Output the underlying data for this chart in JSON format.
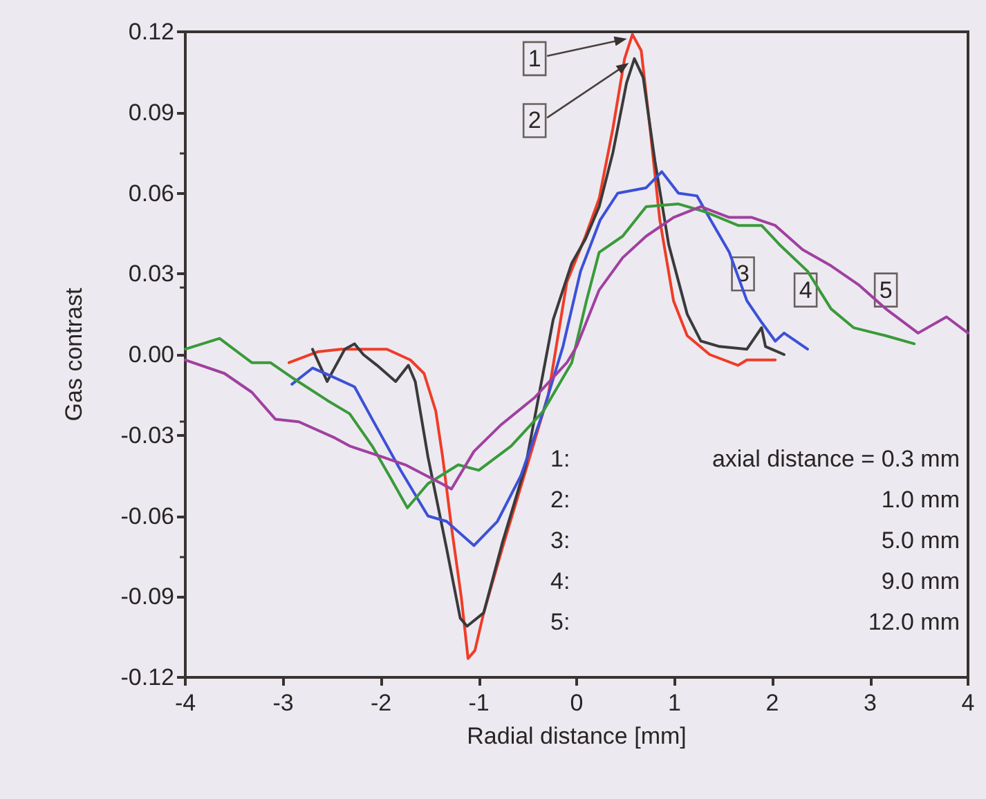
{
  "chart_data": {
    "type": "line",
    "xlabel": "Radial distance [mm]",
    "ylabel": "Gas contrast",
    "xlim": [
      -4,
      4
    ],
    "xticks": [
      -4,
      -3,
      -2,
      -1,
      0,
      1,
      2,
      3,
      4
    ],
    "ylim": [
      -0.12,
      0.12
    ],
    "yticks": [
      {
        "value": -0.12,
        "label": "-0.12"
      },
      {
        "value": -0.09,
        "label": "-0.09"
      },
      {
        "value": -0.06,
        "label": "-0.06"
      },
      {
        "value": -0.03,
        "label": "-0.03"
      },
      {
        "value": 0,
        "label": "0.00"
      },
      {
        "value": 0.03,
        "label": "0.03"
      },
      {
        "value": 0.06,
        "label": "0.06"
      },
      {
        "value": 0.09,
        "label": "0.09"
      },
      {
        "value": 0.12,
        "label": "0.12"
      }
    ],
    "grid": false,
    "marker": "none",
    "line_style": "solid",
    "series": [
      {
        "color": "#f03c28",
        "x": [
          -2.94,
          -2.65,
          -2.41,
          -1.94,
          -1.7,
          -1.56,
          -1.44,
          -1.37,
          -1.28,
          -1.18,
          -1.11,
          -1.04,
          -0.95,
          -0.76,
          -0.52,
          -0.29,
          -0.1,
          0.09,
          0.23,
          0.37,
          0.49,
          0.57,
          0.66,
          0.75,
          0.85,
          0.99,
          1.13,
          1.36,
          1.65,
          1.74,
          2.03
        ],
        "values": [
          -0.003,
          0.001,
          0.002,
          0.002,
          -0.002,
          -0.007,
          -0.021,
          -0.038,
          -0.064,
          -0.09,
          -0.113,
          -0.11,
          -0.096,
          -0.072,
          -0.043,
          -0.015,
          0.027,
          0.044,
          0.058,
          0.084,
          0.11,
          0.119,
          0.113,
          0.084,
          0.05,
          0.02,
          0.007,
          0,
          -0.004,
          -0.002,
          -0.002
        ]
      },
      {
        "color": "#3a3a3a",
        "x": [
          -2.7,
          -2.55,
          -2.37,
          -2.27,
          -2.18,
          -2.04,
          -1.85,
          -1.72,
          -1.65,
          -1.52,
          -1.33,
          -1.19,
          -1.12,
          -0.95,
          -0.76,
          -0.52,
          -0.24,
          -0.05,
          0.09,
          0.23,
          0.37,
          0.51,
          0.59,
          0.68,
          0.8,
          0.94,
          1.13,
          1.27,
          1.46,
          1.74,
          1.89,
          1.93,
          2.12
        ],
        "values": [
          0.002,
          -0.01,
          0.002,
          0.004,
          0,
          -0.004,
          -0.01,
          -0.004,
          -0.01,
          -0.038,
          -0.072,
          -0.098,
          -0.101,
          -0.096,
          -0.07,
          -0.041,
          0.013,
          0.034,
          0.043,
          0.055,
          0.075,
          0.101,
          0.11,
          0.103,
          0.072,
          0.041,
          0.015,
          0.005,
          0.003,
          0.002,
          0.01,
          0.003,
          0
        ]
      },
      {
        "color": "#3c50d8",
        "x": [
          -2.91,
          -2.7,
          -2.51,
          -2.27,
          -2.09,
          -1.8,
          -1.52,
          -1.33,
          -1.05,
          -0.81,
          -0.57,
          -0.34,
          -0.14,
          0.04,
          0.24,
          0.42,
          0.71,
          0.87,
          1.04,
          1.23,
          1.37,
          1.56,
          1.74,
          1.89,
          2.03,
          2.12,
          2.36
        ],
        "values": [
          -0.011,
          -0.005,
          -0.008,
          -0.012,
          -0.024,
          -0.043,
          -0.06,
          -0.062,
          -0.071,
          -0.062,
          -0.045,
          -0.021,
          0.003,
          0.031,
          0.05,
          0.06,
          0.062,
          0.068,
          0.06,
          0.059,
          0.05,
          0.038,
          0.02,
          0.012,
          0.005,
          0.008,
          0.002
        ]
      },
      {
        "color": "#3a9a3a",
        "x": [
          -4,
          -3.65,
          -3.32,
          -3.13,
          -2.89,
          -2.55,
          -2.32,
          -2.09,
          -1.9,
          -1.73,
          -1.52,
          -1.21,
          -1,
          -0.67,
          -0.34,
          -0.05,
          0.1,
          0.23,
          0.47,
          0.71,
          1.04,
          1.32,
          1.65,
          1.89,
          2.07,
          2.36,
          2.6,
          2.83,
          3.16,
          3.45
        ],
        "values": [
          0.002,
          0.006,
          -0.003,
          -0.003,
          -0.009,
          -0.017,
          -0.022,
          -0.034,
          -0.046,
          -0.057,
          -0.048,
          -0.041,
          -0.043,
          -0.034,
          -0.021,
          -0.003,
          0.02,
          0.038,
          0.044,
          0.055,
          0.056,
          0.053,
          0.048,
          0.048,
          0.041,
          0.031,
          0.017,
          0.01,
          0.007,
          0.004
        ]
      },
      {
        "color": "#a040a0",
        "x": [
          -4,
          -3.6,
          -3.32,
          -3.08,
          -2.84,
          -2.47,
          -2.32,
          -1.99,
          -1.75,
          -1.38,
          -1.28,
          -1.05,
          -0.77,
          -0.43,
          -0.1,
          0,
          0.23,
          0.47,
          0.71,
          0.99,
          1.27,
          1.56,
          1.79,
          2.03,
          2.31,
          2.6,
          2.88,
          3.16,
          3.49,
          3.78,
          4
        ],
        "values": [
          -0.002,
          -0.007,
          -0.014,
          -0.024,
          -0.025,
          -0.031,
          -0.034,
          -0.038,
          -0.041,
          -0.048,
          -0.05,
          -0.036,
          -0.026,
          -0.016,
          -0.003,
          0.003,
          0.024,
          0.036,
          0.044,
          0.051,
          0.055,
          0.051,
          0.051,
          0.048,
          0.039,
          0.033,
          0.026,
          0.017,
          0.008,
          0.014,
          0.008
        ]
      }
    ],
    "annotations": [
      {
        "text": "1",
        "x": -0.43,
        "y": 0.11
      },
      {
        "text": "2",
        "x": -0.43,
        "y": 0.087
      },
      {
        "text": "3",
        "x": 1.7,
        "y": 0.03
      },
      {
        "text": "4",
        "x": 2.34,
        "y": 0.024
      },
      {
        "text": "5",
        "x": 3.16,
        "y": 0.024
      },
      "1: axial distance = 0.3 mm",
      "2: 1.0 mm",
      "3: 5.0 mm",
      "4: 9.0 mm",
      "5: 12.0 mm"
    ]
  }
}
